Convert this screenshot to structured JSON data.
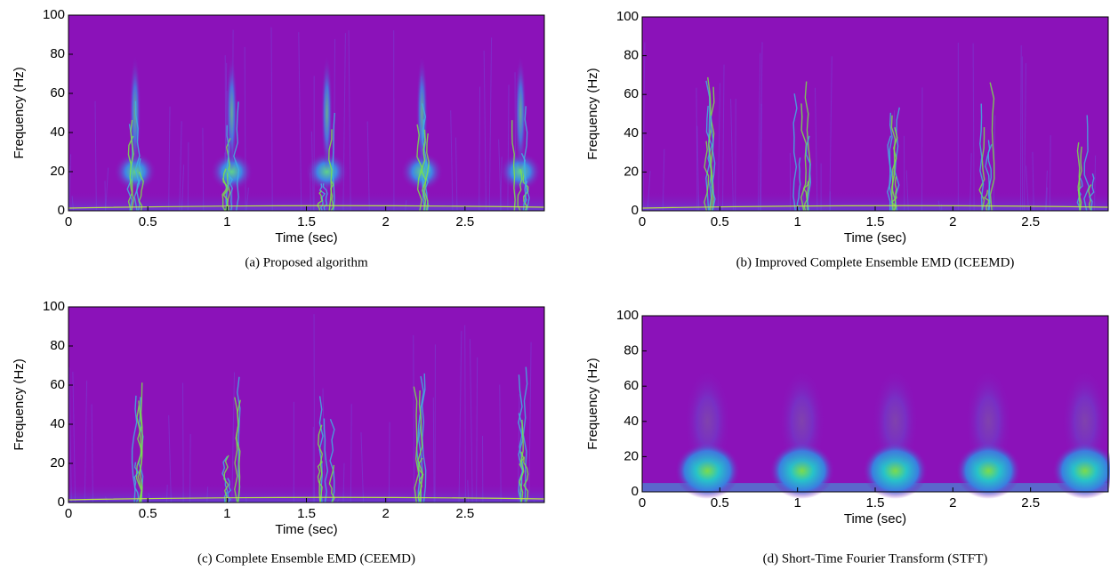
{
  "chart_data": [
    {
      "type": "spectrogram",
      "title": "(a)  Proposed algorithm",
      "x_label": "Time (sec)",
      "y_label": "Frequency (Hz)",
      "xlim": [
        0,
        3
      ],
      "xticks": [
        0,
        0.5,
        1,
        1.5,
        2,
        2.5
      ],
      "ylim": [
        0,
        100
      ],
      "yticks": [
        0,
        20,
        40,
        60,
        80,
        100
      ]
    },
    {
      "type": "spectrogram",
      "title": "(b)  Improved Complete Ensemble EMD (ICEEMD)",
      "x_label": "Time (sec)",
      "y_label": "Frequency (Hz)",
      "xlim": [
        0,
        3
      ],
      "xticks": [
        0,
        0.5,
        1,
        1.5,
        2,
        2.5
      ],
      "ylim": [
        0,
        100
      ],
      "yticks": [
        0,
        20,
        40,
        60,
        80,
        100
      ]
    },
    {
      "type": "spectrogram",
      "title": "(c)  Complete Ensemble EMD (CEEMD)",
      "x_label": "Time (sec)",
      "y_label": "Frequency (Hz)",
      "xlim": [
        0,
        3
      ],
      "xticks": [
        0,
        0.5,
        1,
        1.5,
        2,
        2.5
      ],
      "ylim": [
        0,
        100
      ],
      "yticks": [
        0,
        20,
        40,
        60,
        80,
        100
      ]
    },
    {
      "type": "spectrogram",
      "title": "(d)  Short-Time Fourier Transform (STFT)",
      "x_label": "Time (sec)",
      "y_label": "Frequency (Hz)",
      "xlim": [
        0,
        3
      ],
      "xticks": [
        0,
        0.5,
        1,
        1.5,
        2,
        2.5
      ],
      "ylim": [
        0,
        100
      ],
      "yticks": [
        0,
        20,
        40,
        60,
        80,
        100
      ]
    }
  ]
}
